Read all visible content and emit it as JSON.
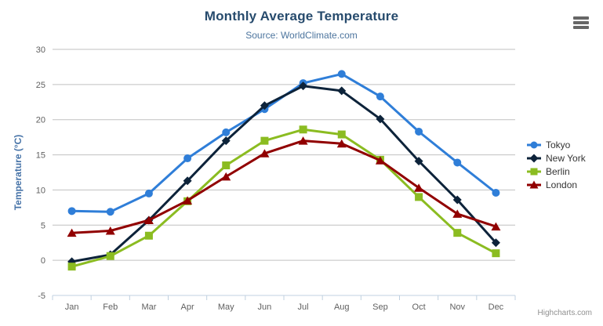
{
  "chart": {
    "title": "Monthly Average Temperature",
    "subtitle": "Source: WorldClimate.com",
    "credits": "Highcharts.com"
  },
  "icons": {
    "export_menu": "hamburger-menu-icon"
  },
  "colors": {
    "title": "#274b6d",
    "subtitle": "#4d759e",
    "axis_labels": "#606060",
    "yaxis_title": "#4572A7",
    "gridline": "#C0C0C0",
    "axis_line": "#C0D0E0",
    "legend_text": "#333333",
    "credits": "#909090",
    "export_icon": "#666666",
    "background": "#ffffff"
  },
  "chart_data": {
    "type": "line",
    "title": "Monthly Average Temperature",
    "subtitle": "Source: WorldClimate.com",
    "categories": [
      "Jan",
      "Feb",
      "Mar",
      "Apr",
      "May",
      "Jun",
      "Jul",
      "Aug",
      "Sep",
      "Oct",
      "Nov",
      "Dec"
    ],
    "series": [
      {
        "name": "Tokyo",
        "color": "#2f7ed8",
        "marker": "circle",
        "values": [
          7.0,
          6.9,
          9.5,
          14.5,
          18.2,
          21.5,
          25.2,
          26.5,
          23.3,
          18.3,
          13.9,
          9.6
        ]
      },
      {
        "name": "New York",
        "color": "#0d233a",
        "marker": "diamond",
        "values": [
          -0.2,
          0.8,
          5.7,
          11.3,
          17.0,
          22.0,
          24.8,
          24.1,
          20.1,
          14.1,
          8.6,
          2.5
        ]
      },
      {
        "name": "Berlin",
        "color": "#8bbc21",
        "marker": "square",
        "values": [
          -0.9,
          0.6,
          3.5,
          8.4,
          13.5,
          17.0,
          18.6,
          17.9,
          14.3,
          9.0,
          3.9,
          1.0
        ]
      },
      {
        "name": "London",
        "color": "#910000",
        "marker": "triangle",
        "values": [
          3.9,
          4.2,
          5.7,
          8.5,
          11.9,
          15.2,
          17.0,
          16.6,
          14.2,
          10.3,
          6.6,
          4.8
        ]
      }
    ],
    "xlabel": "",
    "ylabel": "Temperature (°C)",
    "ylim": [
      -5,
      30
    ],
    "yticks": [
      -5,
      0,
      5,
      10,
      15,
      20,
      25,
      30
    ],
    "grid": true,
    "legend_position": "right-middle"
  }
}
